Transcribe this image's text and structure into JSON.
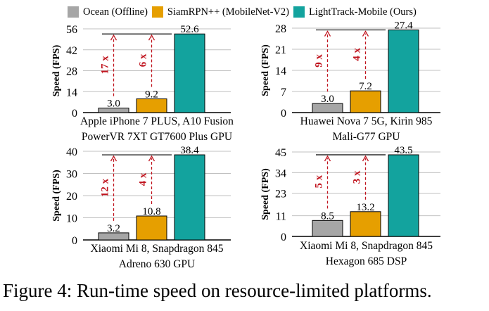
{
  "legend": [
    {
      "label": "Ocean (Offline)",
      "color": "#a6a6a6"
    },
    {
      "label": "SiamRPN++ (MobileNet-V2)",
      "color": "#e69f00"
    },
    {
      "label": "LightTrack-Mobile (Ours)",
      "color": "#13a39e"
    }
  ],
  "caption": "Figure 4: Run-time speed on resource-limited platforms.",
  "chart_data": [
    {
      "type": "bar",
      "ylabel": "Speed (FPS)",
      "xlabel_lines": [
        "Apple iPhone 7 PLUS, A10 Fusion",
        "PowerVR 7XT GT7600 Plus GPU"
      ],
      "series": [
        {
          "name": "Ocean (Offline)",
          "values": [
            3.0
          ]
        },
        {
          "name": "SiamRPN++ (MobileNet-V2)",
          "values": [
            9.2
          ]
        },
        {
          "name": "LightTrack-Mobile (Ours)",
          "values": [
            52.6
          ]
        }
      ],
      "value_labels": [
        "3.0",
        "9.2",
        "52.6"
      ],
      "speedups": [
        "17 x",
        "6 x"
      ],
      "yticks": [
        0,
        14,
        28,
        42,
        56
      ],
      "ylim": [
        0,
        56
      ],
      "grid": true
    },
    {
      "type": "bar",
      "ylabel": "Speed (FPS)",
      "xlabel_lines": [
        "Huawei Nova 7 5G, Kirin 985",
        "Mali-G77 GPU"
      ],
      "series": [
        {
          "name": "Ocean (Offline)",
          "values": [
            3.0
          ]
        },
        {
          "name": "SiamRPN++ (MobileNet-V2)",
          "values": [
            7.2
          ]
        },
        {
          "name": "LightTrack-Mobile (Ours)",
          "values": [
            27.4
          ]
        }
      ],
      "value_labels": [
        "3.0",
        "7.2",
        "27.4"
      ],
      "speedups": [
        "9 x",
        "4 x"
      ],
      "yticks": [
        0,
        7,
        14,
        21,
        28
      ],
      "ylim": [
        0,
        28
      ],
      "grid": true
    },
    {
      "type": "bar",
      "ylabel": "Speed (FPS)",
      "xlabel_lines": [
        "Xiaomi Mi 8, Snapdragon 845",
        "Adreno 630 GPU"
      ],
      "series": [
        {
          "name": "Ocean (Offline)",
          "values": [
            3.2
          ]
        },
        {
          "name": "SiamRPN++ (MobileNet-V2)",
          "values": [
            10.8
          ]
        },
        {
          "name": "LightTrack-Mobile (Ours)",
          "values": [
            38.4
          ]
        }
      ],
      "value_labels": [
        "3.2",
        "10.8",
        "38.4"
      ],
      "speedups": [
        "12 x",
        "4 x"
      ],
      "yticks": [
        0,
        10,
        20,
        30,
        40
      ],
      "ylim": [
        0,
        40
      ],
      "grid": true
    },
    {
      "type": "bar",
      "ylabel": "Speed (FPS)",
      "xlabel_lines": [
        "Xiaomi Mi 8, Snapdragon 845",
        "Hexagon 685 DSP"
      ],
      "series": [
        {
          "name": "Ocean (Offline)",
          "values": [
            8.5
          ]
        },
        {
          "name": "SiamRPN++ (MobileNet-V2)",
          "values": [
            13.2
          ]
        },
        {
          "name": "LightTrack-Mobile (Ours)",
          "values": [
            43.5
          ]
        }
      ],
      "value_labels": [
        "8.5",
        "13.2",
        "43.5"
      ],
      "speedups": [
        "5 x",
        "3 x"
      ],
      "yticks": [
        0,
        11,
        23,
        34,
        45
      ],
      "ylim": [
        0,
        45
      ],
      "grid": true
    }
  ]
}
